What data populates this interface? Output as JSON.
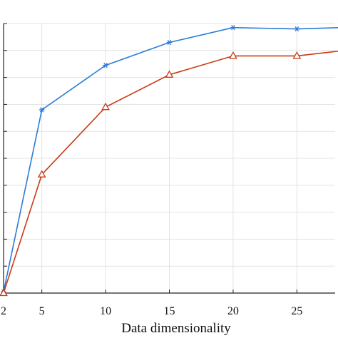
{
  "chart_data": {
    "type": "line",
    "xlabel": "Data dimensionality",
    "ylabel": "",
    "x": [
      2,
      5,
      10,
      15,
      20,
      25,
      30
    ],
    "xticks": [
      2,
      5,
      10,
      15,
      20,
      25
    ],
    "xtick_labels": [
      "2",
      "5",
      "10",
      "15",
      "20",
      "25"
    ],
    "xlim": [
      2,
      28
    ],
    "ylim": [
      0,
      10
    ],
    "grid": true,
    "series": [
      {
        "color": "#2b7bd8",
        "marker": "asterisk",
        "values": [
          0.05,
          6.8,
          8.45,
          9.3,
          9.85,
          9.8,
          9.87
        ]
      },
      {
        "color": "#c93a14",
        "marker": "triangle",
        "values": [
          0.0,
          4.4,
          6.9,
          8.1,
          8.8,
          8.8,
          9.07
        ]
      }
    ]
  }
}
